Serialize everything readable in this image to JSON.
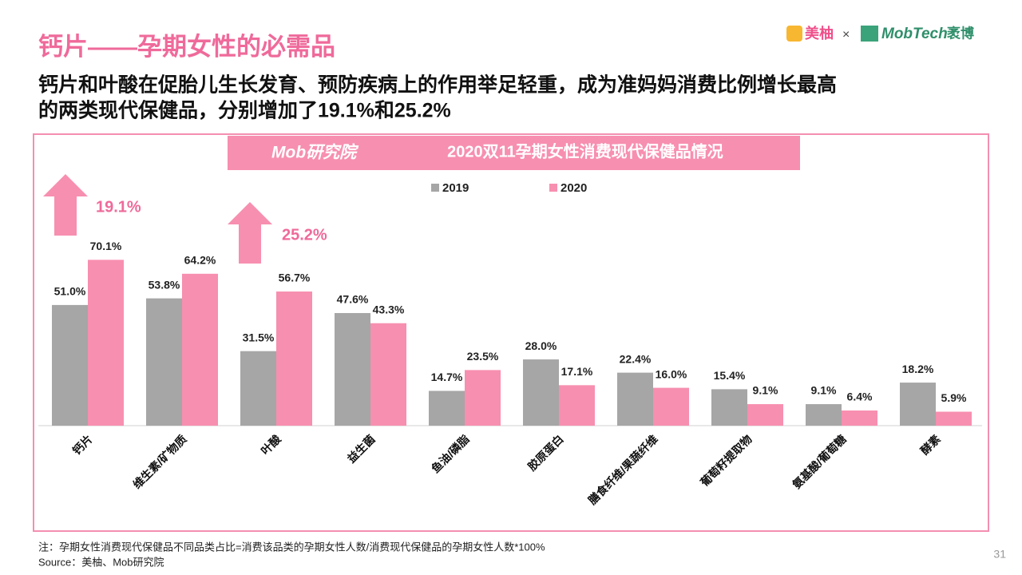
{
  "slide": {
    "title": "钙片——孕期女性的必需品",
    "subtitle_lines": [
      "钙片和叶酸在促胎儿生长发育、预防疾病上的作用举足轻重，成为准妈妈消费比例增长最高",
      "的两类现代保健品，分别增加了19.1%和25.2%"
    ],
    "logo_left": "美柚",
    "logo_sep": "×",
    "logo_right": "MobTech",
    "logo_right_cn": "袤博",
    "badge": "Mob研究院",
    "note": "注：孕期女性消费现代保健品不同品类占比=消费该品类的孕期女性人数/消费现代保健品的孕期女性人数*100%",
    "source": "Source：美柚、Mob研究院",
    "page_number": "31"
  },
  "chart_data": {
    "type": "bar",
    "title": "2020双11孕期女性消费现代保健品情况",
    "annotations": [
      "19.1%",
      "25.2%"
    ],
    "categories": [
      "钙片",
      "维生素/矿物质",
      "叶酸",
      "益生菌",
      "鱼油/磷脂",
      "胶原蛋白",
      "膳食纤维/果蔬纤维",
      "葡萄籽提取物",
      "氨基酸/葡萄糖",
      "酵素"
    ],
    "series": [
      {
        "name": "2019",
        "color": "#a6a6a6",
        "values": [
          51.0,
          53.8,
          31.5,
          47.6,
          14.7,
          28.0,
          22.4,
          15.4,
          9.1,
          18.2
        ],
        "value_labels": [
          "51.0%",
          "53.8%",
          "31.5%",
          "47.6%",
          "14.7%",
          "28.0%",
          "22.4%",
          "15.4%",
          "9.1%",
          "18.2%"
        ]
      },
      {
        "name": "2020",
        "color": "#f78fb0",
        "values": [
          70.1,
          64.2,
          56.7,
          43.3,
          23.5,
          17.1,
          16.0,
          9.1,
          6.4,
          5.9
        ],
        "value_labels": [
          "70.1%",
          "64.2%",
          "56.7%",
          "43.3%",
          "23.5%",
          "17.1%",
          "16.0%",
          "9.1%",
          "6.4%",
          "5.9%"
        ]
      }
    ],
    "ylim": [
      0,
      80
    ]
  }
}
